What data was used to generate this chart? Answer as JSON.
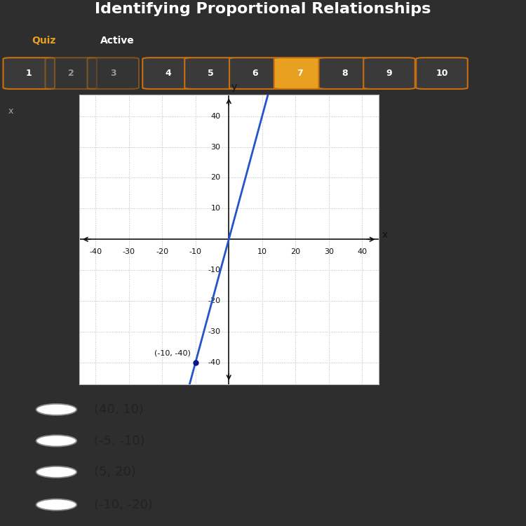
{
  "title": "Identifying Proportional Relationships",
  "subtitle_left": "Quiz",
  "subtitle_right": "Active",
  "quiz_buttons": [
    "1",
    "2",
    "3",
    "4",
    "5",
    "6",
    "7",
    "8",
    "9",
    "10"
  ],
  "active_button": "7",
  "header_bg": "#2e2e2e",
  "header_text_color": "#ffffff",
  "quiz_label_color": "#e8a020",
  "button_bg": "#3a3a3a",
  "button_border": "#c87010",
  "active_button_bg": "#e8a020",
  "graph_bg": "#ffffff",
  "graph_outer_bg": "#e8e8e8",
  "grid_color": "#bbbbbb",
  "grid_style": "dotted",
  "axis_color": "#111111",
  "line_color": "#2255cc",
  "point_color": "#111188",
  "point_x": -10,
  "point_y": -40,
  "point_label": "(-10, -40)",
  "xlim": [
    -45,
    45
  ],
  "ylim": [
    -47,
    47
  ],
  "xticks": [
    -40,
    -30,
    -20,
    -10,
    10,
    20,
    30,
    40
  ],
  "yticks": [
    -40,
    -30,
    -20,
    -10,
    10,
    20,
    30,
    40
  ],
  "slope": 4,
  "answer_options": [
    "(40, 10)",
    "(-5, -10)",
    "(5, 20)",
    "(-10, -20)"
  ],
  "answer_bg": "#e8e8e8",
  "answer_text_color": "#222222",
  "left_bar_bg": "#2e2e2e",
  "left_bar_width": 0.04
}
